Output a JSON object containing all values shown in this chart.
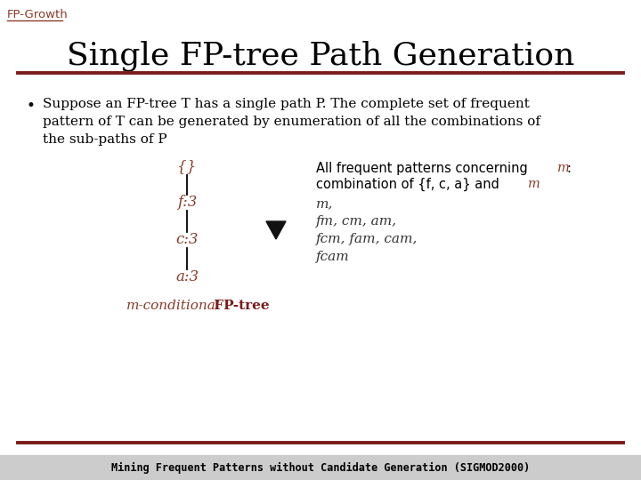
{
  "slide_bg": "#ffffff",
  "title": "Single FP-tree Path Generation",
  "title_color": "#000000",
  "title_fontsize": 26,
  "header_label": "FP-Growth",
  "header_color": "#8B3A2A",
  "separator_color": "#7B1A1A",
  "bullet_text_line1": "Suppose an FP-tree T has a single path P. The complete set of frequent",
  "bullet_text_line2": "pattern of T can be generated by enumeration of all the combinations of",
  "bullet_text_line3": "the sub-paths of P",
  "tree_nodes": [
    "{}",
    "f:3",
    "c:3",
    "a:3"
  ],
  "tree_node_color": "#8B3A2A",
  "tree_label_italic": "m-conditional",
  "tree_label_regular": " FP-tree",
  "tree_label_italic_color": "#8B3A2A",
  "tree_label_regular_color": "#7B1A1A",
  "right_lines_italic": [
    "m,",
    "fm, cm, am,",
    "fcm, fam, cam,",
    "fcam"
  ],
  "right_text_color": "#000000",
  "right_italic_m_color": "#8B3A2A",
  "footer_text": "Mining Frequent Patterns without Candidate Generation (SIGMOD2000)",
  "footer_bg": "#cccccc",
  "footer_color": "#000000",
  "footer_fontsize": 8.5
}
